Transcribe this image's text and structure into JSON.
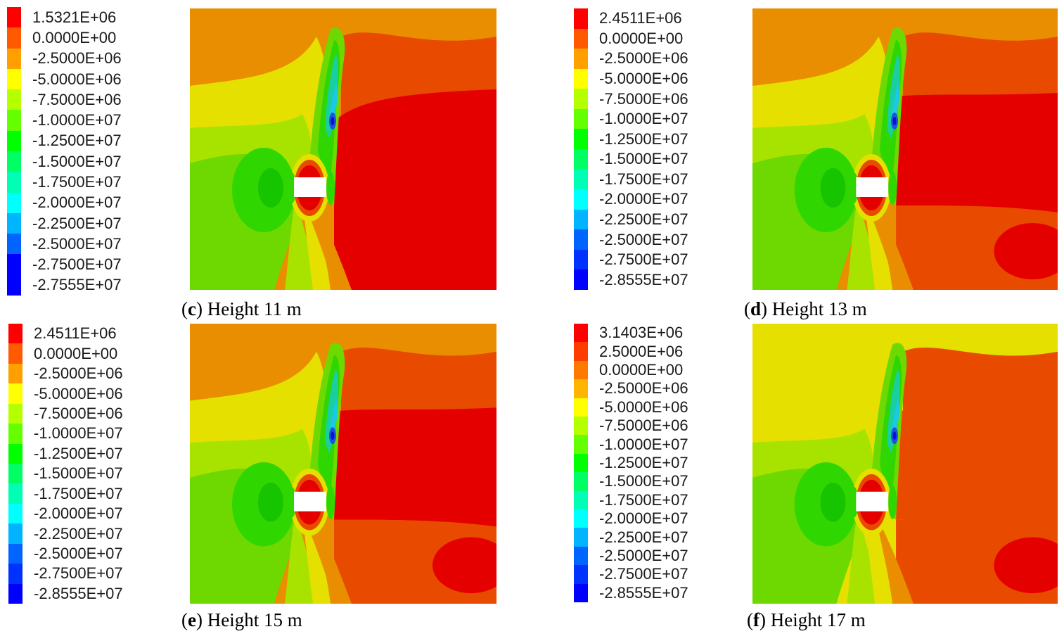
{
  "panels": [
    {
      "letter": "c",
      "caption": "Height 11 m",
      "legend_labels": [
        "1.5321E+06",
        "0.0000E+00",
        "-2.5000E+06",
        "-5.0000E+06",
        "-7.5000E+06",
        "-1.0000E+07",
        "-1.2500E+07",
        "-1.5000E+07",
        "-1.7500E+07",
        "-2.0000E+07",
        "-2.2500E+07",
        "-2.5000E+07",
        "-2.7500E+07",
        "-2.7555E+07"
      ],
      "legend_colors": [
        "#ff0000",
        "#ff5a00",
        "#ffa000",
        "#ffff00",
        "#b4ff00",
        "#64ff00",
        "#00ff00",
        "#00ff64",
        "#00ffb4",
        "#00ffff",
        "#00b4ff",
        "#0064ff",
        "#0000ff",
        "#0000ff"
      ]
    },
    {
      "letter": "d",
      "caption": "Height 13 m",
      "legend_labels": [
        "2.4511E+06",
        "0.0000E+00",
        "-2.5000E+06",
        "-5.0000E+06",
        "-7.5000E+06",
        "-1.0000E+07",
        "-1.2500E+07",
        "-1.5000E+07",
        "-1.7500E+07",
        "-2.0000E+07",
        "-2.2500E+07",
        "-2.5000E+07",
        "-2.7500E+07",
        "-2.8555E+07"
      ],
      "legend_colors": [
        "#ff0000",
        "#ff5a00",
        "#ffa000",
        "#ffff00",
        "#b4ff00",
        "#64ff00",
        "#00ff00",
        "#00ff64",
        "#00ffb4",
        "#00ffff",
        "#00b4ff",
        "#0064ff",
        "#0032ff",
        "#0000ff"
      ]
    },
    {
      "letter": "e",
      "caption": "Height 15 m",
      "legend_labels": [
        "2.4511E+06",
        "0.0000E+00",
        "-2.5000E+06",
        "-5.0000E+06",
        "-7.5000E+06",
        "-1.0000E+07",
        "-1.2500E+07",
        "-1.5000E+07",
        "-1.7500E+07",
        "-2.0000E+07",
        "-2.2500E+07",
        "-2.5000E+07",
        "-2.7500E+07",
        "-2.8555E+07"
      ],
      "legend_colors": [
        "#ff0000",
        "#ff5a00",
        "#ffa000",
        "#ffff00",
        "#b4ff00",
        "#64ff00",
        "#00ff00",
        "#00ff64",
        "#00ffb4",
        "#00ffff",
        "#00b4ff",
        "#0064ff",
        "#0032ff",
        "#0000ff"
      ]
    },
    {
      "letter": "f",
      "caption": "Height 17 m",
      "legend_labels": [
        "3.1403E+06",
        "2.5000E+06",
        "0.0000E+00",
        "-2.5000E+06",
        "-5.0000E+06",
        "-7.5000E+06",
        "-1.0000E+07",
        "-1.2500E+07",
        "-1.5000E+07",
        "-1.7500E+07",
        "-2.0000E+07",
        "-2.2500E+07",
        "-2.5000E+07",
        "-2.7500E+07",
        "-2.8555E+07"
      ],
      "legend_colors": [
        "#ff0000",
        "#ff3c00",
        "#ff7800",
        "#ffb400",
        "#ffff00",
        "#b4ff00",
        "#64ff00",
        "#00ff00",
        "#00ff64",
        "#00ffb4",
        "#00ffff",
        "#00b4ff",
        "#0064ff",
        "#0032ff",
        "#0000ff"
      ]
    }
  ],
  "contour_colors": {
    "red": "#e50000",
    "red_orange": "#e84a00",
    "orange": "#e98e00",
    "yellow": "#e5e000",
    "yellow_green": "#a8e300",
    "green_light": "#6ed900",
    "green": "#2fd600",
    "green_deep": "#17c400",
    "teal": "#19cfa0",
    "cyan": "#19c9e6",
    "blue": "#1e50e6",
    "blue_deep": "#0a14c8",
    "opening": "#ffffff"
  }
}
